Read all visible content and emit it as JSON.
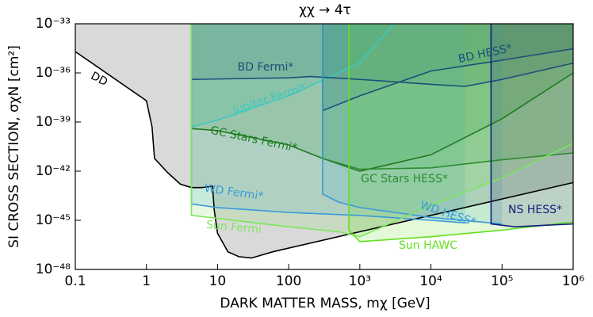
{
  "chart_data": {
    "type": "line",
    "title": "χχ → 4τ",
    "x_label": "DARK MATTER MASS, mχ [GeV]",
    "y_label": "SI CROSS SECTION, σχN  [cm²]",
    "xscale": "log",
    "yscale": "log",
    "xlim": [
      0.1,
      1000000
    ],
    "ylim": [
      1e-48,
      1e-33
    ],
    "xticks": [
      0.1,
      1,
      10,
      100,
      {
        "value": 1000,
        "label": "10³"
      },
      {
        "value": 10000,
        "label": "10⁴"
      },
      {
        "value": 100000,
        "label": "10⁵"
      },
      {
        "value": 1000000,
        "label": "10⁶"
      }
    ],
    "yticks": [
      {
        "value": 1e-48,
        "label": "10⁻⁴⁸"
      },
      {
        "value": 1e-45,
        "label": "10⁻⁴⁵"
      },
      {
        "value": 1e-42,
        "label": "10⁻⁴²"
      },
      {
        "value": 1e-39,
        "label": "10⁻³⁹"
      },
      {
        "value": 1e-36,
        "label": "10⁻³⁶"
      },
      {
        "value": 1e-33,
        "label": "10⁻³³"
      }
    ],
    "series": [
      {
        "name": "DD",
        "color": "#000000",
        "x": [
          0.1,
          1,
          1.2,
          1.3,
          2,
          3,
          4.3,
          6,
          8.5,
          9,
          10,
          14,
          20,
          30,
          60,
          1000000
        ],
        "values": [
          2e-35,
          2e-38,
          5e-40,
          6e-42,
          8e-43,
          1.6e-43,
          1e-43,
          1e-43,
          1.2e-43,
          4e-45,
          1.6e-46,
          1.2e-47,
          6e-48,
          5e-48,
          1.2e-47,
          2e-43
        ]
      },
      {
        "name": "Jupiter Fermi*",
        "color": "#3cc8c0",
        "x": [
          4.3,
          4.3,
          10,
          100,
          1000,
          3000
        ],
        "values": [
          1e-33,
          5e-40,
          1.3e-39,
          4e-38,
          4e-36,
          1e-33
        ]
      },
      {
        "name": "BD Fermi*",
        "color": "#1a4f7a",
        "x": [
          4.3,
          4.3,
          100,
          200,
          1000,
          10000,
          30000,
          100000,
          1000000
        ],
        "values": [
          1e-33,
          4e-37,
          5e-37,
          6e-37,
          4e-37,
          2e-37,
          1.5e-37,
          4e-37,
          4e-36
        ]
      },
      {
        "name": "BD HESS*",
        "color": "#1a4f7a",
        "x": [
          300,
          300,
          1000,
          10000,
          100000,
          1000000
        ],
        "values": [
          1e-33,
          5e-39,
          4e-38,
          1.3e-36,
          6e-36,
          3e-35
        ]
      },
      {
        "name": "GC Stars Fermi*",
        "color": "#1f7a1f",
        "x": [
          4.3,
          4.3,
          10,
          100,
          300,
          1000,
          10000,
          100000,
          1000000
        ],
        "values": [
          1e-33,
          4e-40,
          3e-40,
          4e-41,
          6e-42,
          1e-42,
          1e-41,
          1.6e-39,
          1e-36
        ]
      },
      {
        "name": "GC Stars HESS*",
        "color": "#2e8b2e",
        "x": [
          300,
          300,
          1000,
          10000,
          100000,
          1000000
        ],
        "values": [
          1e-33,
          6e-42,
          1.3e-42,
          1.6e-42,
          5e-42,
          1.3e-41
        ]
      },
      {
        "name": "WD Fermi*",
        "color": "#3a9ad9",
        "x": [
          4.3,
          4.3,
          10,
          100,
          1000,
          10000,
          30000
        ],
        "values": [
          1e-33,
          1e-44,
          6e-45,
          3e-45,
          2e-45,
          1e-45,
          7e-46
        ]
      },
      {
        "name": "WD HESS*",
        "color": "#3a9ad9",
        "x": [
          300,
          300,
          500,
          1000,
          10000,
          100000
        ],
        "values": [
          1e-33,
          4e-44,
          1.3e-44,
          6e-45,
          1.5e-45,
          6e-46
        ]
      },
      {
        "name": "Sun Fermi",
        "color": "#7ce65a",
        "x": [
          4.3,
          4.3,
          10,
          100,
          500,
          1000,
          10000,
          100000,
          1000000
        ],
        "values": [
          1e-33,
          2e-45,
          1.3e-45,
          4e-46,
          2e-46,
          1e-46,
          8e-45,
          4e-43,
          5e-41
        ]
      },
      {
        "name": "Sun HAWC",
        "color": "#66e020",
        "x": [
          700,
          700,
          1000,
          10000,
          100000,
          1000000
        ],
        "values": [
          1e-33,
          2.5e-46,
          5e-47,
          1e-46,
          2.5e-46,
          8e-46
        ]
      },
      {
        "name": "NS HESS*",
        "color": "#0f1f7a",
        "x": [
          70000,
          70000,
          150000,
          1000000
        ],
        "values": [
          1e-33,
          6e-46,
          4e-46,
          6e-46
        ]
      }
    ]
  }
}
